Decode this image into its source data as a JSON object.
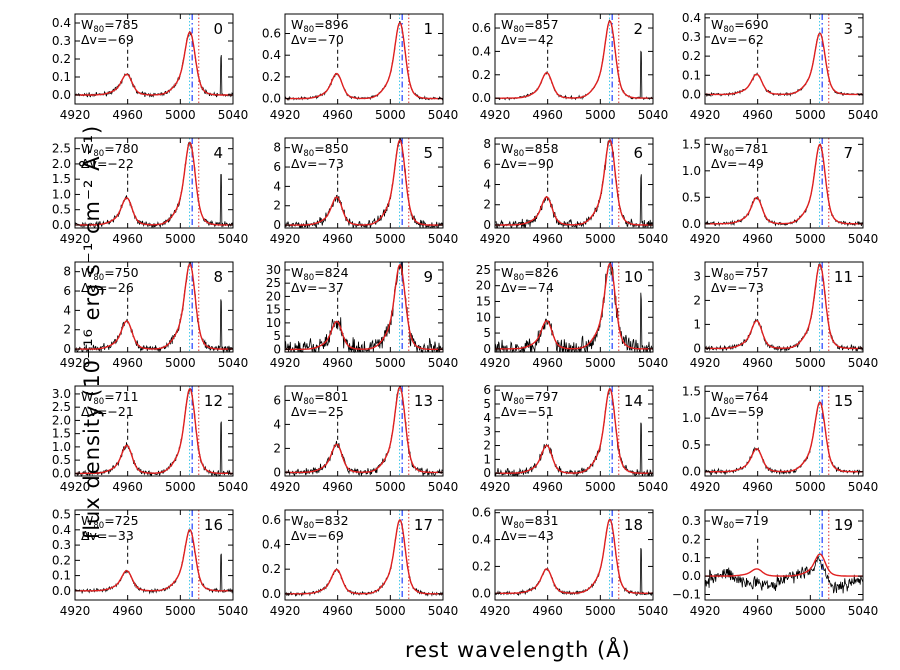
{
  "figure": {
    "xlabel": "rest wavelength (Å)",
    "ylabel": "flux density (10⁻¹⁶ erg s⁻¹ cm⁻² Å⁻¹)",
    "xticks": [
      "4920",
      "4960",
      "5000",
      "5040"
    ],
    "colors": {
      "data": "#000000",
      "model": "#e02020",
      "blue_line": "#2040ff",
      "cyan_line": "#40c8e8",
      "red_dotted": "#e03030"
    }
  },
  "chart_data": [
    {
      "type": "line",
      "panel": "0",
      "w80_label": "W",
      "w80_sub": "80",
      "w80_value": "=785",
      "dv_label": "Δv=−69",
      "xlim": [
        4920,
        5040
      ],
      "yticks": [
        "0.0",
        "0.1",
        "0.2",
        "0.3",
        "0.4"
      ],
      "ylim": [
        -0.05,
        0.45
      ],
      "peak": 0.35,
      "noise": 0.02
    },
    {
      "type": "line",
      "panel": "1",
      "w80_label": "W",
      "w80_sub": "80",
      "w80_value": "=896",
      "dv_label": "Δv=−70",
      "xlim": [
        4920,
        5040
      ],
      "yticks": [
        "0.0",
        "0.2",
        "0.4",
        "0.6"
      ],
      "ylim": [
        -0.05,
        0.78
      ],
      "peak": 0.7,
      "noise": 0.015
    },
    {
      "type": "line",
      "panel": "2",
      "w80_label": "W",
      "w80_sub": "80",
      "w80_value": "=857",
      "dv_label": "Δv=−42",
      "xlim": [
        4920,
        5040
      ],
      "yticks": [
        "0.0",
        "0.2",
        "0.4",
        "0.6"
      ],
      "ylim": [
        -0.05,
        0.72
      ],
      "peak": 0.66,
      "noise": 0.015
    },
    {
      "type": "line",
      "panel": "3",
      "w80_label": "W",
      "w80_sub": "80",
      "w80_value": "=690",
      "dv_label": "Δv=−62",
      "xlim": [
        4920,
        5040
      ],
      "yticks": [
        "0.0",
        "0.1",
        "0.2",
        "0.3",
        "0.4"
      ],
      "ylim": [
        -0.05,
        0.42
      ],
      "peak": 0.32,
      "noise": 0.015
    },
    {
      "type": "line",
      "panel": "4",
      "w80_label": "W",
      "w80_sub": "80",
      "w80_value": "=780",
      "dv_label": "Δv=−22",
      "xlim": [
        4920,
        5040
      ],
      "yticks": [
        "0.0",
        "0.5",
        "1.0",
        "1.5",
        "2.0",
        "2.5"
      ],
      "ylim": [
        -0.1,
        2.85
      ],
      "peak": 2.7,
      "noise": 0.03
    },
    {
      "type": "line",
      "panel": "5",
      "w80_label": "W",
      "w80_sub": "80",
      "w80_value": "=850",
      "dv_label": "Δv=−73",
      "xlim": [
        4920,
        5040
      ],
      "yticks": [
        "0",
        "2",
        "4",
        "6",
        "8"
      ],
      "ylim": [
        -0.3,
        9.0
      ],
      "peak": 8.8,
      "noise": 0.05
    },
    {
      "type": "line",
      "panel": "6",
      "w80_label": "W",
      "w80_sub": "80",
      "w80_value": "=858",
      "dv_label": "Δv=−90",
      "xlim": [
        4920,
        5040
      ],
      "yticks": [
        "0",
        "2",
        "4",
        "6",
        "8"
      ],
      "ylim": [
        -0.3,
        8.6
      ],
      "peak": 8.4,
      "noise": 0.05
    },
    {
      "type": "line",
      "panel": "7",
      "w80_label": "W",
      "w80_sub": "80",
      "w80_value": "=781",
      "dv_label": "Δv=−49",
      "xlim": [
        4920,
        5040
      ],
      "yticks": [
        "0.0",
        "0.5",
        "1.0",
        "1.5"
      ],
      "ylim": [
        -0.08,
        1.62
      ],
      "peak": 1.5,
      "noise": 0.02
    },
    {
      "type": "line",
      "panel": "8",
      "w80_label": "W",
      "w80_sub": "80",
      "w80_value": "=750",
      "dv_label": "Δv=−26",
      "xlim": [
        4920,
        5040
      ],
      "yticks": [
        "0",
        "2",
        "4",
        "6",
        "8"
      ],
      "ylim": [
        -0.3,
        9.0
      ],
      "peak": 8.8,
      "noise": 0.04
    },
    {
      "type": "line",
      "panel": "9",
      "w80_label": "W",
      "w80_sub": "80",
      "w80_value": "=824",
      "dv_label": "Δv=−37",
      "xlim": [
        4920,
        5040
      ],
      "yticks": [
        "0",
        "5",
        "10",
        "15",
        "20",
        "25",
        "30"
      ],
      "ylim": [
        -1,
        33
      ],
      "peak": 32,
      "noise": 0.1
    },
    {
      "type": "line",
      "panel": "10",
      "w80_label": "W",
      "w80_sub": "80",
      "w80_value": "=826",
      "dv_label": "Δv=−74",
      "xlim": [
        4920,
        5040
      ],
      "yticks": [
        "0",
        "5",
        "10",
        "15",
        "20",
        "25"
      ],
      "ylim": [
        -1,
        27.5
      ],
      "peak": 27,
      "noise": 0.1
    },
    {
      "type": "line",
      "panel": "11",
      "w80_label": "W",
      "w80_sub": "80",
      "w80_value": "=757",
      "dv_label": "Δv=−73",
      "xlim": [
        4920,
        5040
      ],
      "yticks": [
        "0",
        "1",
        "2",
        "3"
      ],
      "ylim": [
        -0.15,
        3.6
      ],
      "peak": 3.5,
      "noise": 0.03
    },
    {
      "type": "line",
      "panel": "12",
      "w80_label": "W",
      "w80_sub": "80",
      "w80_value": "=711",
      "dv_label": "Δv=−21",
      "xlim": [
        4920,
        5040
      ],
      "yticks": [
        "0.0",
        "0.5",
        "1.0",
        "1.5",
        "2.0",
        "2.5",
        "3.0"
      ],
      "ylim": [
        -0.1,
        3.3
      ],
      "peak": 3.2,
      "noise": 0.03
    },
    {
      "type": "line",
      "panel": "13",
      "w80_label": "W",
      "w80_sub": "80",
      "w80_value": "=801",
      "dv_label": "Δv=−25",
      "xlim": [
        4920,
        5040
      ],
      "yticks": [
        "0",
        "2",
        "4",
        "6"
      ],
      "ylim": [
        -0.3,
        7.2
      ],
      "peak": 7.1,
      "noise": 0.04
    },
    {
      "type": "line",
      "panel": "14",
      "w80_label": "W",
      "w80_sub": "80",
      "w80_value": "=797",
      "dv_label": "Δv=−51",
      "xlim": [
        4920,
        5040
      ],
      "yticks": [
        "0",
        "1",
        "2",
        "3",
        "4",
        "5",
        "6"
      ],
      "ylim": [
        -0.2,
        6.3
      ],
      "peak": 6.1,
      "noise": 0.04
    },
    {
      "type": "line",
      "panel": "15",
      "w80_label": "W",
      "w80_sub": "80",
      "w80_value": "=764",
      "dv_label": "Δv=−59",
      "xlim": [
        4920,
        5040
      ],
      "yticks": [
        "0.0",
        "0.5",
        "1.0",
        "1.5"
      ],
      "ylim": [
        -0.08,
        1.6
      ],
      "peak": 1.3,
      "noise": 0.025
    },
    {
      "type": "line",
      "panel": "16",
      "w80_label": "W",
      "w80_sub": "80",
      "w80_value": "=725",
      "dv_label": "Δv=−33",
      "xlim": [
        4920,
        5040
      ],
      "yticks": [
        "0.0",
        "0.1",
        "0.2",
        "0.3",
        "0.4",
        "0.5"
      ],
      "ylim": [
        -0.06,
        0.53
      ],
      "peak": 0.4,
      "noise": 0.02
    },
    {
      "type": "line",
      "panel": "17",
      "w80_label": "W",
      "w80_sub": "80",
      "w80_value": "=832",
      "dv_label": "Δv=−69",
      "xlim": [
        4920,
        5040
      ],
      "yticks": [
        "0.0",
        "0.2",
        "0.4",
        "0.6"
      ],
      "ylim": [
        -0.05,
        0.68
      ],
      "peak": 0.6,
      "noise": 0.018
    },
    {
      "type": "line",
      "panel": "18",
      "w80_label": "W",
      "w80_sub": "80",
      "w80_value": "=831",
      "dv_label": "Δv=−43",
      "xlim": [
        4920,
        5040
      ],
      "yticks": [
        "0.0",
        "0.2",
        "0.4",
        "0.6"
      ],
      "ylim": [
        -0.05,
        0.62
      ],
      "peak": 0.55,
      "noise": 0.02
    },
    {
      "type": "line",
      "panel": "19",
      "w80_label": "W",
      "w80_sub": "80",
      "w80_value": "=719",
      "dv_label": "",
      "xlim": [
        4920,
        5040
      ],
      "yticks": [
        "−0.1",
        "0.0",
        "0.1",
        "0.2",
        "0.3"
      ],
      "ylim": [
        -0.13,
        0.36
      ],
      "peak": 0.12,
      "noise": 0.045
    }
  ]
}
